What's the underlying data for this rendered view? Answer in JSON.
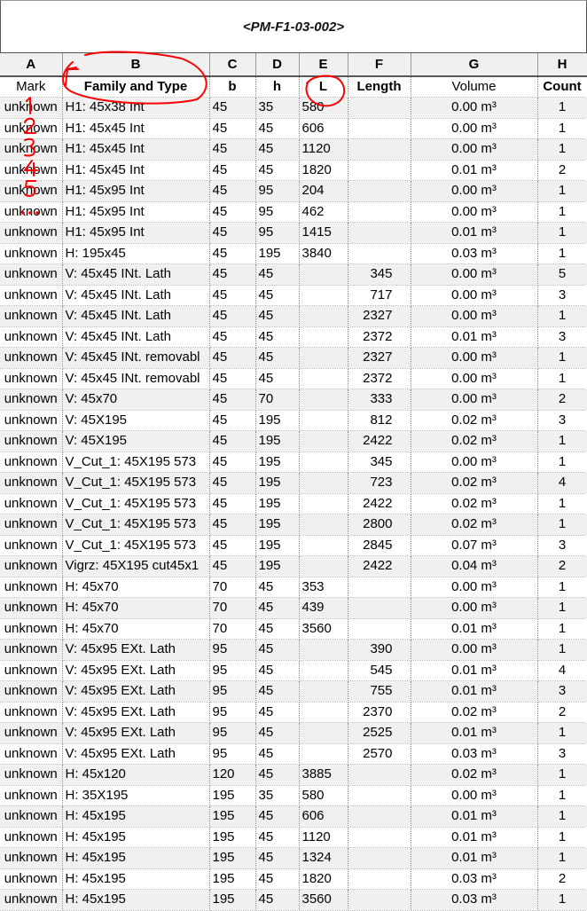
{
  "schedule_title": "<PM-F1-03-002>",
  "column_letters": [
    "A",
    "B",
    "C",
    "D",
    "E",
    "F",
    "G",
    "H"
  ],
  "column_headers": [
    "Mark",
    "Family and Type",
    "b",
    "h",
    "L",
    "Length",
    "Volume",
    "Count"
  ],
  "rows": [
    [
      "unknown",
      "H1: 45x38 Int",
      "45",
      "35",
      "580",
      "",
      "0.00 m³",
      "1"
    ],
    [
      "unknown",
      "H1: 45x45 Int",
      "45",
      "45",
      "606",
      "",
      "0.00 m³",
      "1"
    ],
    [
      "unknown",
      "H1: 45x45 Int",
      "45",
      "45",
      "1120",
      "",
      "0.00 m³",
      "1"
    ],
    [
      "unknown",
      "H1: 45x45 Int",
      "45",
      "45",
      "1820",
      "",
      "0.01 m³",
      "2"
    ],
    [
      "unknown",
      "H1: 45x95 Int",
      "45",
      "95",
      "204",
      "",
      "0.00 m³",
      "1"
    ],
    [
      "unknown",
      "H1: 45x95 Int",
      "45",
      "95",
      "462",
      "",
      "0.00 m³",
      "1"
    ],
    [
      "unknown",
      "H1: 45x95 Int",
      "45",
      "95",
      "1415",
      "",
      "0.01 m³",
      "1"
    ],
    [
      "unknown",
      "H: 195x45",
      "45",
      "195",
      "3840",
      "",
      "0.03 m³",
      "1"
    ],
    [
      "unknown",
      "V: 45x45 INt. Lath",
      "45",
      "45",
      "",
      "345",
      "0.00 m³",
      "5"
    ],
    [
      "unknown",
      "V: 45x45 INt. Lath",
      "45",
      "45",
      "",
      "717",
      "0.00 m³",
      "3"
    ],
    [
      "unknown",
      "V: 45x45 INt. Lath",
      "45",
      "45",
      "",
      "2327",
      "0.00 m³",
      "1"
    ],
    [
      "unknown",
      "V: 45x45 INt. Lath",
      "45",
      "45",
      "",
      "2372",
      "0.01 m³",
      "3"
    ],
    [
      "unknown",
      "V: 45x45 INt. removabl",
      "45",
      "45",
      "",
      "2327",
      "0.00 m³",
      "1"
    ],
    [
      "unknown",
      "V: 45x45 INt. removabl",
      "45",
      "45",
      "",
      "2372",
      "0.00 m³",
      "1"
    ],
    [
      "unknown",
      "V: 45x70",
      "45",
      "70",
      "",
      "333",
      "0.00 m³",
      "2"
    ],
    [
      "unknown",
      "V: 45X195",
      "45",
      "195",
      "",
      "812",
      "0.02 m³",
      "3"
    ],
    [
      "unknown",
      "V: 45X195",
      "45",
      "195",
      "",
      "2422",
      "0.02 m³",
      "1"
    ],
    [
      "unknown",
      "V_Cut_1: 45X195 573",
      "45",
      "195",
      "",
      "345",
      "0.00 m³",
      "1"
    ],
    [
      "unknown",
      "V_Cut_1: 45X195 573",
      "45",
      "195",
      "",
      "723",
      "0.02 m³",
      "4"
    ],
    [
      "unknown",
      "V_Cut_1: 45X195 573",
      "45",
      "195",
      "",
      "2422",
      "0.02 m³",
      "1"
    ],
    [
      "unknown",
      "V_Cut_1: 45X195 573",
      "45",
      "195",
      "",
      "2800",
      "0.02 m³",
      "1"
    ],
    [
      "unknown",
      "V_Cut_1: 45X195 573",
      "45",
      "195",
      "",
      "2845",
      "0.07 m³",
      "3"
    ],
    [
      "unknown",
      "Vigrz: 45X195  cut45x1",
      "45",
      "195",
      "",
      "2422",
      "0.04 m³",
      "2"
    ],
    [
      "unknown",
      "H: 45x70",
      "70",
      "45",
      "353",
      "",
      "0.00 m³",
      "1"
    ],
    [
      "unknown",
      "H: 45x70",
      "70",
      "45",
      "439",
      "",
      "0.00 m³",
      "1"
    ],
    [
      "unknown",
      "H: 45x70",
      "70",
      "45",
      "3560",
      "",
      "0.01 m³",
      "1"
    ],
    [
      "unknown",
      "V: 45x95 EXt. Lath",
      "95",
      "45",
      "",
      "390",
      "0.00 m³",
      "1"
    ],
    [
      "unknown",
      "V: 45x95 EXt. Lath",
      "95",
      "45",
      "",
      "545",
      "0.01 m³",
      "4"
    ],
    [
      "unknown",
      "V: 45x95 EXt. Lath",
      "95",
      "45",
      "",
      "755",
      "0.01 m³",
      "3"
    ],
    [
      "unknown",
      "V: 45x95 EXt. Lath",
      "95",
      "45",
      "",
      "2370",
      "0.02 m³",
      "2"
    ],
    [
      "unknown",
      "V: 45x95 EXt. Lath",
      "95",
      "45",
      "",
      "2525",
      "0.01 m³",
      "1"
    ],
    [
      "unknown",
      "V: 45x95 EXt. Lath",
      "95",
      "45",
      "",
      "2570",
      "0.03 m³",
      "3"
    ],
    [
      "unknown",
      "H: 45x120",
      "120",
      "45",
      "3885",
      "",
      "0.02 m³",
      "1"
    ],
    [
      "unknown",
      "H: 35X195",
      "195",
      "35",
      "580",
      "",
      "0.00 m³",
      "1"
    ],
    [
      "unknown",
      "H: 45x195",
      "195",
      "45",
      "606",
      "",
      "0.01 m³",
      "1"
    ],
    [
      "unknown",
      "H: 45x195",
      "195",
      "45",
      "1120",
      "",
      "0.01 m³",
      "1"
    ],
    [
      "unknown",
      "H: 45x195",
      "195",
      "45",
      "1324",
      "",
      "0.01 m³",
      "1"
    ],
    [
      "unknown",
      "H: 45x195",
      "195",
      "45",
      "1820",
      "",
      "0.03 m³",
      "2"
    ],
    [
      "unknown",
      "H: 45x195",
      "195",
      "45",
      "3560",
      "",
      "0.03 m³",
      "1"
    ]
  ],
  "annotations": {
    "color": "#ff0000",
    "handwritten_marks": [
      "1",
      "2",
      "3",
      "4",
      "5",
      "..."
    ]
  }
}
